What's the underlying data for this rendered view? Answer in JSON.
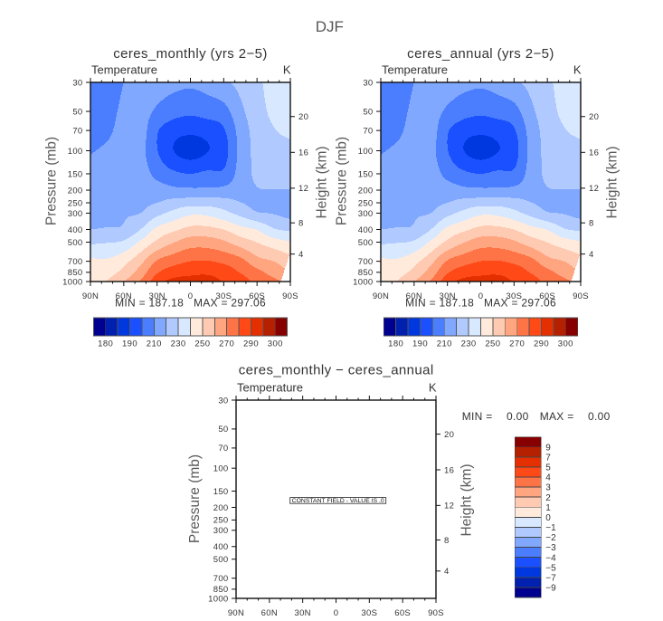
{
  "page": {
    "title": "DJF"
  },
  "chart_data": [
    {
      "type": "contour",
      "title": "ceres_monthly (yrs 2−5)",
      "left_string": "Temperature",
      "right_string": "K",
      "ylabel": "Pressure (mb)",
      "ylabel_right": "Height (km)",
      "x": {
        "range": [
          90,
          -90
        ],
        "ticks": [
          90,
          60,
          30,
          0,
          -30,
          -60,
          -90
        ],
        "labels": [
          "90N",
          "60N",
          "30N",
          "0",
          "30S",
          "60S",
          "90S"
        ],
        "minor_step": 10
      },
      "y": {
        "scale": "log",
        "range": [
          30,
          1000
        ],
        "ticks": [
          30,
          50,
          70,
          100,
          150,
          200,
          250,
          300,
          400,
          500,
          700,
          850,
          1000
        ],
        "labels": [
          "30",
          "50",
          "70",
          "100",
          "150",
          "200",
          "250",
          "300",
          "400",
          "500",
          "700",
          "850",
          "1000"
        ]
      },
      "y_right": {
        "ticks_km": [
          4,
          8,
          12,
          16,
          20
        ],
        "labels": [
          "4",
          "8",
          "12",
          "16",
          "20"
        ]
      },
      "stats_text": "MIN = 187.18   MAX = 297.06",
      "min": 187.18,
      "max": 297.06,
      "field": {
        "lat": [
          90,
          75,
          60,
          45,
          30,
          15,
          0,
          -15,
          -30,
          -45,
          -60,
          -75,
          -90
        ],
        "pressure_mb": [
          30,
          50,
          70,
          100,
          150,
          200,
          250,
          300,
          400,
          500,
          700,
          850,
          1000
        ],
        "temperature_K": [
          [
            205,
            206.5,
            210,
            213,
            214,
            213,
            212,
            214,
            218,
            223,
            228,
            234,
            237
          ],
          [
            206,
            207.5,
            211.5,
            213.5,
            208.5,
            204,
            202,
            204,
            206.5,
            217.5,
            226,
            232,
            234
          ],
          [
            207,
            208.5,
            213,
            214.5,
            201,
            194,
            192,
            194,
            199,
            214,
            224,
            229.5,
            231.5
          ],
          [
            209.3,
            211.5,
            214.5,
            213,
            200.5,
            190,
            186,
            189.5,
            196,
            213,
            223,
            227,
            228
          ],
          [
            214,
            215,
            217,
            215,
            207,
            202,
            200,
            202,
            202,
            214,
            222,
            224,
            225
          ],
          [
            216,
            217,
            218,
            217,
            215,
            212.5,
            212,
            212,
            213,
            216,
            219.5,
            219.7,
            219.8
          ],
          [
            217,
            218,
            219,
            218.5,
            220,
            224,
            226,
            226,
            224.5,
            220.3,
            218,
            217.5,
            217.5
          ],
          [
            218,
            219,
            219.5,
            220,
            227,
            233,
            238,
            237.5,
            233,
            227,
            221,
            219.5,
            216.5
          ],
          [
            220,
            220.7,
            221.5,
            230,
            242.5,
            248,
            253,
            253,
            249.8,
            243.5,
            239.5,
            231,
            228.5
          ],
          [
            228.5,
            229.5,
            231.5,
            241.5,
            252,
            259.6,
            265,
            265,
            261.5,
            255,
            249.8,
            244.3,
            240.5
          ],
          [
            242,
            241.5,
            247,
            257,
            271,
            276.5,
            280,
            280.5,
            278,
            273.5,
            263.7,
            260,
            254
          ],
          [
            246,
            246.5,
            253,
            264.5,
            279,
            285,
            287.5,
            288,
            285,
            279.5,
            273,
            266,
            260
          ],
          [
            248,
            250.5,
            260,
            271,
            286,
            293.5,
            294.5,
            295.5,
            289.5,
            285,
            277,
            273,
            265
          ]
        ],
        "missing_region_lat_p": [
          [
            -90,
            620
          ],
          [
            -88.5,
            640
          ],
          [
            -87,
            720
          ],
          [
            -85,
            800
          ],
          [
            -83,
            920
          ],
          [
            -81,
            1000
          ],
          [
            -90,
            1000
          ]
        ]
      },
      "colorbar": {
        "orientation": "horizontal",
        "levels": [
          180,
          185,
          190,
          200,
          210,
          220,
          230,
          240,
          250,
          260,
          270,
          280,
          290,
          295,
          300
        ],
        "colors": [
          "#000090",
          "#0020b0",
          "#0038e0",
          "#1a50ff",
          "#4a7eff",
          "#80a8ff",
          "#b0caff",
          "#d8e8ff",
          "#ffeadb",
          "#ffcab2",
          "#ffa680",
          "#ff7446",
          "#ff4a18",
          "#e43000",
          "#b42000",
          "#860000"
        ],
        "label_levels": [
          180,
          190,
          210,
          230,
          250,
          270,
          290,
          300
        ],
        "labels": [
          "180",
          "190",
          "210",
          "230",
          "250",
          "270",
          "290",
          "300"
        ]
      }
    },
    {
      "type": "contour",
      "title": "ceres_annual (yrs 2−5)",
      "left_string": "Temperature",
      "right_string": "K",
      "ylabel": "Pressure (mb)",
      "ylabel_right": "Height (km)",
      "x": {
        "range": [
          90,
          -90
        ],
        "ticks": [
          90,
          60,
          30,
          0,
          -30,
          -60,
          -90
        ],
        "labels": [
          "90N",
          "60N",
          "30N",
          "0",
          "30S",
          "60S",
          "90S"
        ],
        "minor_step": 10
      },
      "y": {
        "scale": "log",
        "range": [
          30,
          1000
        ],
        "ticks": [
          30,
          50,
          70,
          100,
          150,
          200,
          250,
          300,
          400,
          500,
          700,
          850,
          1000
        ],
        "labels": [
          "30",
          "50",
          "70",
          "100",
          "150",
          "200",
          "250",
          "300",
          "400",
          "500",
          "700",
          "850",
          "1000"
        ]
      },
      "y_right": {
        "ticks_km": [
          4,
          8,
          12,
          16,
          20
        ],
        "labels": [
          "4",
          "8",
          "12",
          "16",
          "20"
        ]
      },
      "stats_text": "MIN = 187.18   MAX = 297.06",
      "min": 187.18,
      "max": 297.06,
      "field": {
        "lat": [
          90,
          75,
          60,
          45,
          30,
          15,
          0,
          -15,
          -30,
          -45,
          -60,
          -75,
          -90
        ],
        "pressure_mb": [
          30,
          50,
          70,
          100,
          150,
          200,
          250,
          300,
          400,
          500,
          700,
          850,
          1000
        ],
        "temperature_K": [
          [
            205,
            206.5,
            210,
            213,
            214,
            213,
            212,
            214,
            218,
            223,
            228,
            234,
            237
          ],
          [
            206,
            207.5,
            211.5,
            213.5,
            208.5,
            204,
            202,
            204,
            206.5,
            217.5,
            226,
            232,
            234
          ],
          [
            207,
            208.5,
            213,
            214.5,
            201,
            194,
            192,
            194,
            199,
            214,
            224,
            229.5,
            231.5
          ],
          [
            209.3,
            211.5,
            214.5,
            213,
            200.5,
            190,
            186,
            189.5,
            196,
            213,
            223,
            227,
            228
          ],
          [
            214,
            215,
            217,
            215,
            207,
            202,
            200,
            202,
            202,
            214,
            222,
            224,
            225
          ],
          [
            216,
            217,
            218,
            217,
            215,
            212.5,
            212,
            212,
            213,
            216,
            219.5,
            219.7,
            219.8
          ],
          [
            217,
            218,
            219,
            218.5,
            220,
            224,
            226,
            226,
            224.5,
            220.3,
            218,
            217.5,
            217.5
          ],
          [
            218,
            219,
            219.5,
            220,
            227,
            233,
            238,
            237.5,
            233,
            227,
            221,
            219.5,
            216.5
          ],
          [
            220,
            220.7,
            221.5,
            230,
            242.5,
            248,
            253,
            253,
            249.8,
            243.5,
            239.5,
            231,
            228.5
          ],
          [
            228.5,
            229.5,
            231.5,
            241.5,
            252,
            259.6,
            265,
            265,
            261.5,
            255,
            249.8,
            244.3,
            240.5
          ],
          [
            242,
            241.5,
            247,
            257,
            271,
            276.5,
            280,
            280.5,
            278,
            273.5,
            263.7,
            260,
            254
          ],
          [
            246,
            246.5,
            253,
            264.5,
            279,
            285,
            287.5,
            288,
            285,
            279.5,
            273,
            266,
            260
          ],
          [
            248,
            250.5,
            260,
            271,
            286,
            293.5,
            294.5,
            295.5,
            289.5,
            285,
            277,
            273,
            265
          ]
        ],
        "missing_region_lat_p": [
          [
            -90,
            620
          ],
          [
            -88.5,
            640
          ],
          [
            -87,
            720
          ],
          [
            -85,
            800
          ],
          [
            -83,
            920
          ],
          [
            -81,
            1000
          ],
          [
            -90,
            1000
          ]
        ]
      },
      "colorbar": {
        "orientation": "horizontal",
        "levels": [
          180,
          185,
          190,
          200,
          210,
          220,
          230,
          240,
          250,
          260,
          270,
          280,
          290,
          295,
          300
        ],
        "colors": [
          "#000090",
          "#0020b0",
          "#0038e0",
          "#1a50ff",
          "#4a7eff",
          "#80a8ff",
          "#b0caff",
          "#d8e8ff",
          "#ffeadb",
          "#ffcab2",
          "#ffa680",
          "#ff7446",
          "#ff4a18",
          "#e43000",
          "#b42000",
          "#860000"
        ],
        "label_levels": [
          180,
          190,
          210,
          230,
          250,
          270,
          290,
          300
        ],
        "labels": [
          "180",
          "190",
          "210",
          "230",
          "250",
          "270",
          "290",
          "300"
        ]
      }
    },
    {
      "type": "contour",
      "title": "ceres_monthly − ceres_annual",
      "left_string": "Temperature",
      "right_string": "K",
      "ylabel": "Pressure (mb)",
      "ylabel_right": "Height (km)",
      "x": {
        "range": [
          90,
          -90
        ],
        "ticks": [
          90,
          60,
          30,
          0,
          -30,
          -60,
          -90
        ],
        "labels": [
          "90N",
          "60N",
          "30N",
          "0",
          "30S",
          "60S",
          "90S"
        ],
        "minor_step": 10
      },
      "y": {
        "scale": "log",
        "range": [
          30,
          1000
        ],
        "ticks": [
          30,
          50,
          70,
          100,
          150,
          200,
          250,
          300,
          400,
          500,
          700,
          850,
          1000
        ],
        "labels": [
          "30",
          "50",
          "70",
          "100",
          "150",
          "200",
          "250",
          "300",
          "400",
          "500",
          "700",
          "850",
          "1000"
        ]
      },
      "y_right": {
        "ticks_km": [
          4,
          8,
          12,
          16,
          20
        ],
        "labels": [
          "4",
          "8",
          "12",
          "16",
          "20"
        ]
      },
      "stats": {
        "min_label": "MIN =",
        "min_value": "0.00",
        "max_label": "MAX =",
        "max_value": "0.00"
      },
      "min": 0.0,
      "max": 0.0,
      "annotation": "CONSTANT FIELD - VALUE IS .0",
      "colorbar": {
        "orientation": "vertical",
        "levels": [
          -9,
          -7,
          -5,
          -4,
          -3,
          -2,
          -1,
          0,
          1,
          2,
          3,
          4,
          5,
          7,
          9
        ],
        "colors": [
          "#000090",
          "#0020b0",
          "#0038e0",
          "#1a50ff",
          "#4a7eff",
          "#80a8ff",
          "#b0caff",
          "#d8e8ff",
          "#ffeadb",
          "#ffcab2",
          "#ffa680",
          "#ff7446",
          "#ff4a18",
          "#e43000",
          "#b42000",
          "#860000"
        ],
        "label_levels": [
          -9,
          -7,
          -5,
          -4,
          -3,
          -2,
          -1,
          0,
          1,
          2,
          3,
          4,
          5,
          7,
          9
        ],
        "labels": [
          "−9",
          "−7",
          "−5",
          "−4",
          "−3",
          "−2",
          "−1",
          "0",
          "1",
          "2",
          "3",
          "4",
          "5",
          "7",
          "9"
        ]
      }
    }
  ]
}
